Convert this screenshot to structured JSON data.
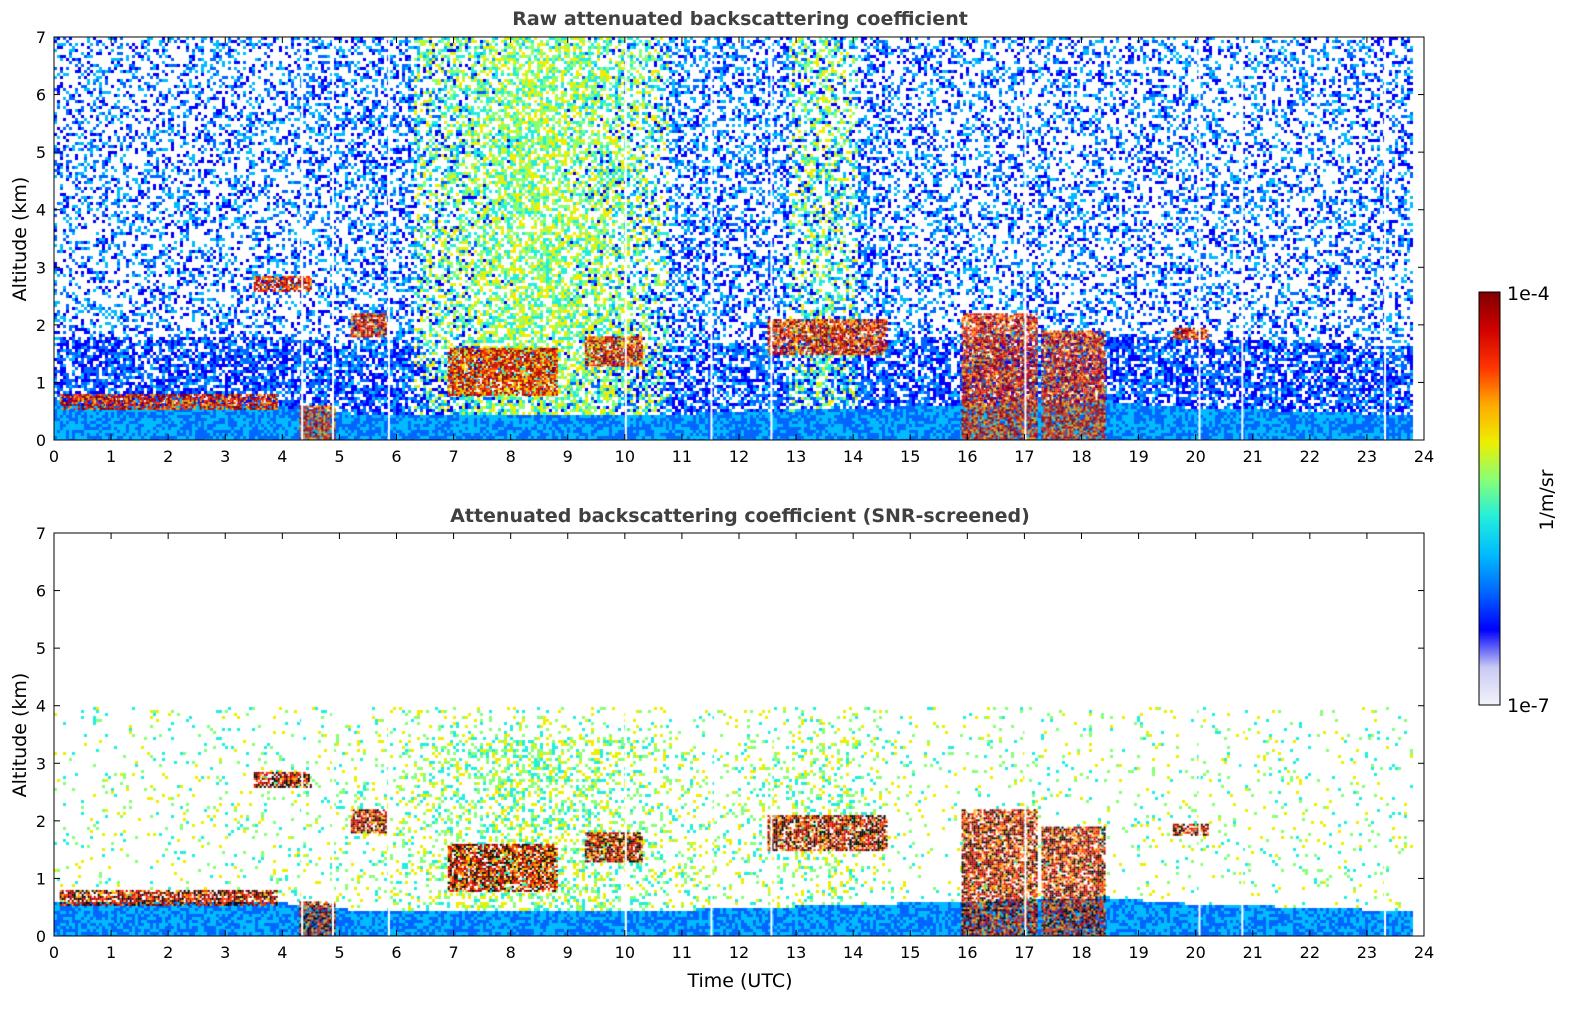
{
  "colors": {
    "jet_stops": [
      "#f3f3fb",
      "#c9c9f3",
      "#0000ff",
      "#0066ff",
      "#00bbff",
      "#22eedd",
      "#88ff77",
      "#eeee00",
      "#ffaa00",
      "#ff3300",
      "#d00000",
      "#800000"
    ],
    "axis": "#000000",
    "title": "#404040",
    "gap": "#ffffff"
  },
  "colorbar": {
    "label": "1/m/sr",
    "top_label": "1e-4",
    "bottom_label": "1e-7",
    "scale": "log",
    "range": [
      1e-07,
      0.0001
    ]
  },
  "chart_data": [
    {
      "type": "heatmap",
      "title": "Raw attenuated backscattering coefficient",
      "xlabel": "",
      "ylabel": "Altitude (km)",
      "xlim": [
        0,
        24
      ],
      "ylim": [
        0,
        7
      ],
      "xticks": [
        "0",
        "1",
        "2",
        "3",
        "4",
        "5",
        "6",
        "7",
        "8",
        "9",
        "10",
        "11",
        "12",
        "13",
        "14",
        "15",
        "16",
        "17",
        "18",
        "19",
        "20",
        "21",
        "22",
        "23",
        "24"
      ],
      "yticks": [
        "0",
        "1",
        "2",
        "3",
        "4",
        "5",
        "6",
        "7"
      ],
      "data_end_hour": 23.8,
      "data_gaps_hours": [
        4.33,
        4.87,
        5.85,
        10.0,
        11.5,
        12.55,
        17.0,
        20.05,
        20.8,
        23.3
      ],
      "boundary_layer_top_km": [
        [
          0,
          0.6
        ],
        [
          4,
          0.6
        ],
        [
          5.5,
          0.45
        ],
        [
          10,
          0.45
        ],
        [
          18.4,
          0.7
        ],
        [
          19.5,
          0.6
        ],
        [
          24,
          0.45
        ]
      ],
      "cloud_layers": [
        {
          "t": [
            0.1,
            3.9
          ],
          "alt_km": [
            0.55,
            0.8
          ],
          "level": 1.0
        },
        {
          "t": [
            3.5,
            4.5
          ],
          "alt_km": [
            2.6,
            2.85
          ],
          "level": 1.0
        },
        {
          "t": [
            4.3,
            4.9
          ],
          "alt_km": [
            0.0,
            0.6
          ],
          "level": 0.9
        },
        {
          "t": [
            5.2,
            5.8
          ],
          "alt_km": [
            1.8,
            2.2
          ],
          "level": 0.95
        },
        {
          "t": [
            6.9,
            8.8
          ],
          "alt_km": [
            0.8,
            1.6
          ],
          "level": 0.95
        },
        {
          "t": [
            9.3,
            10.3
          ],
          "alt_km": [
            1.3,
            1.8
          ],
          "level": 0.95
        },
        {
          "t": [
            12.5,
            14.6
          ],
          "alt_km": [
            1.5,
            2.1
          ],
          "level": 0.95
        },
        {
          "t": [
            15.9,
            17.2
          ],
          "alt_km": [
            0.0,
            2.2
          ],
          "level": 0.9
        },
        {
          "t": [
            17.3,
            18.4
          ],
          "alt_km": [
            0.0,
            1.9
          ],
          "level": 0.9
        },
        {
          "t": [
            19.6,
            20.2
          ],
          "alt_km": [
            1.75,
            1.95
          ],
          "level": 1.0
        }
      ]
    },
    {
      "type": "heatmap",
      "title": "Attenuated backscattering coefficient (SNR-screened)",
      "xlabel": "Time (UTC)",
      "ylabel": "Altitude (km)",
      "xlim": [
        0,
        24
      ],
      "ylim": [
        0,
        7
      ],
      "xticks": [
        "0",
        "1",
        "2",
        "3",
        "4",
        "5",
        "6",
        "7",
        "8",
        "9",
        "10",
        "11",
        "12",
        "13",
        "14",
        "15",
        "16",
        "17",
        "18",
        "19",
        "20",
        "21",
        "22",
        "23",
        "24"
      ],
      "yticks": [
        "0",
        "1",
        "2",
        "3",
        "4",
        "5",
        "6",
        "7"
      ],
      "data_end_hour": 23.8,
      "screened": true,
      "data_gaps_hours": [
        4.33,
        4.87,
        5.85,
        10.0,
        11.5,
        12.55,
        17.0,
        20.05,
        20.8,
        23.3
      ],
      "boundary_layer_top_km": [
        [
          0,
          0.6
        ],
        [
          4,
          0.6
        ],
        [
          5.5,
          0.45
        ],
        [
          10,
          0.45
        ],
        [
          18.4,
          0.7
        ],
        [
          19.5,
          0.6
        ],
        [
          24,
          0.45
        ]
      ],
      "cloud_layers": [
        {
          "t": [
            0.1,
            3.9
          ],
          "alt_km": [
            0.55,
            0.8
          ],
          "level": 1.0
        },
        {
          "t": [
            3.5,
            4.5
          ],
          "alt_km": [
            2.6,
            2.85
          ],
          "level": 1.0
        },
        {
          "t": [
            4.3,
            4.9
          ],
          "alt_km": [
            0.0,
            0.6
          ],
          "level": 0.9
        },
        {
          "t": [
            5.2,
            5.8
          ],
          "alt_km": [
            1.8,
            2.2
          ],
          "level": 0.95
        },
        {
          "t": [
            6.9,
            8.8
          ],
          "alt_km": [
            0.8,
            1.6
          ],
          "level": 0.95
        },
        {
          "t": [
            9.3,
            10.3
          ],
          "alt_km": [
            1.3,
            1.8
          ],
          "level": 0.95
        },
        {
          "t": [
            12.5,
            14.6
          ],
          "alt_km": [
            1.5,
            2.1
          ],
          "level": 0.95
        },
        {
          "t": [
            15.9,
            17.2
          ],
          "alt_km": [
            0.0,
            2.2
          ],
          "level": 0.9
        },
        {
          "t": [
            17.3,
            18.4
          ],
          "alt_km": [
            0.0,
            1.9
          ],
          "level": 0.9
        },
        {
          "t": [
            19.6,
            20.2
          ],
          "alt_km": [
            1.75,
            1.95
          ],
          "level": 1.0
        }
      ]
    }
  ]
}
